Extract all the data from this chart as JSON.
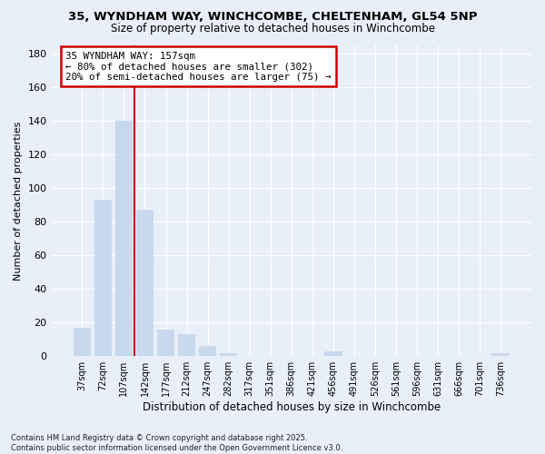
{
  "title_line1": "35, WYNDHAM WAY, WINCHCOMBE, CHELTENHAM, GL54 5NP",
  "title_line2": "Size of property relative to detached houses in Winchcombe",
  "xlabel": "Distribution of detached houses by size in Winchcombe",
  "ylabel": "Number of detached properties",
  "annotation_line1": "35 WYNDHAM WAY: 157sqm",
  "annotation_line2": "← 80% of detached houses are smaller (302)",
  "annotation_line3": "20% of semi-detached houses are larger (75) →",
  "categories": [
    "37sqm",
    "72sqm",
    "107sqm",
    "142sqm",
    "177sqm",
    "212sqm",
    "247sqm",
    "282sqm",
    "317sqm",
    "351sqm",
    "386sqm",
    "421sqm",
    "456sqm",
    "491sqm",
    "526sqm",
    "561sqm",
    "596sqm",
    "631sqm",
    "666sqm",
    "701sqm",
    "736sqm"
  ],
  "values": [
    17,
    93,
    140,
    87,
    16,
    13,
    6,
    2,
    0,
    0,
    0,
    0,
    3,
    0,
    0,
    0,
    0,
    0,
    0,
    0,
    2
  ],
  "bar_color": "#c8d9ee",
  "vline_x": 2.5,
  "ylim": [
    0,
    185
  ],
  "yticks": [
    0,
    20,
    40,
    60,
    80,
    100,
    120,
    140,
    160,
    180
  ],
  "background_color": "#e8eff8",
  "annotation_box_color": "#ffffff",
  "annotation_box_edge": "#cc0000",
  "vline_color": "#cc0000",
  "footer_line1": "Contains HM Land Registry data © Crown copyright and database right 2025.",
  "footer_line2": "Contains public sector information licensed under the Open Government Licence v3.0."
}
